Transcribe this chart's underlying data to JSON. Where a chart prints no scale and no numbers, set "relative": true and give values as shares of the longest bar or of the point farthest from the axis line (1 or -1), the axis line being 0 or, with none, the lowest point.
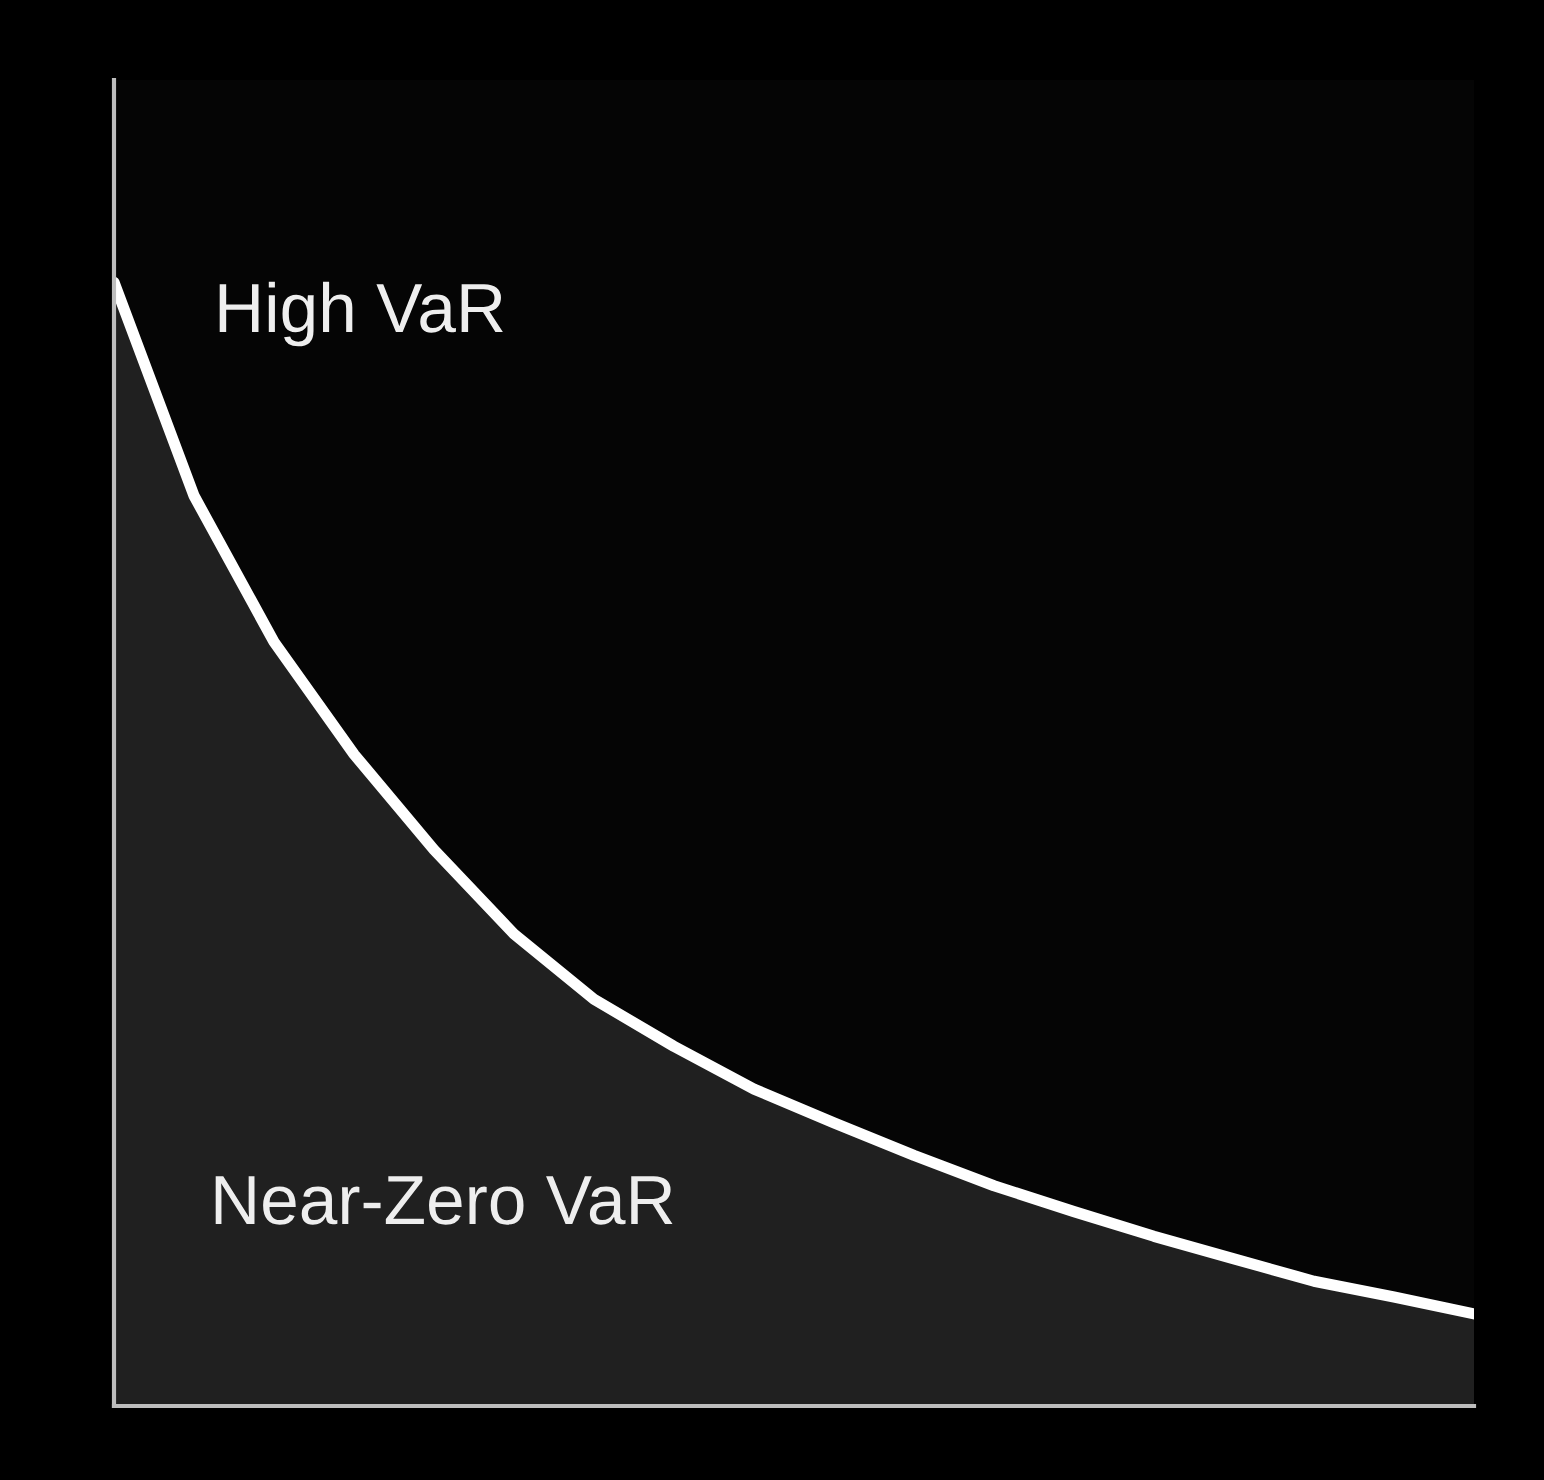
{
  "chart_data": {
    "type": "area",
    "relative": true,
    "categories": [
      null,
      null,
      null,
      null,
      null,
      null,
      null,
      null,
      null,
      null,
      null,
      null,
      null,
      null,
      null,
      null,
      null,
      null
    ],
    "series": [
      {
        "color": "#ffffff",
        "values": [
          1.0,
          0.81,
          0.68,
          0.58,
          0.495,
          0.42,
          0.362,
          0.32,
          0.282,
          0.252,
          0.223,
          0.196,
          0.173,
          0.151,
          0.131,
          0.111,
          0.097,
          0.082
        ]
      }
    ],
    "annotations": [
      "High VaR",
      "Near-Zero VaR"
    ],
    "grid": false
  }
}
